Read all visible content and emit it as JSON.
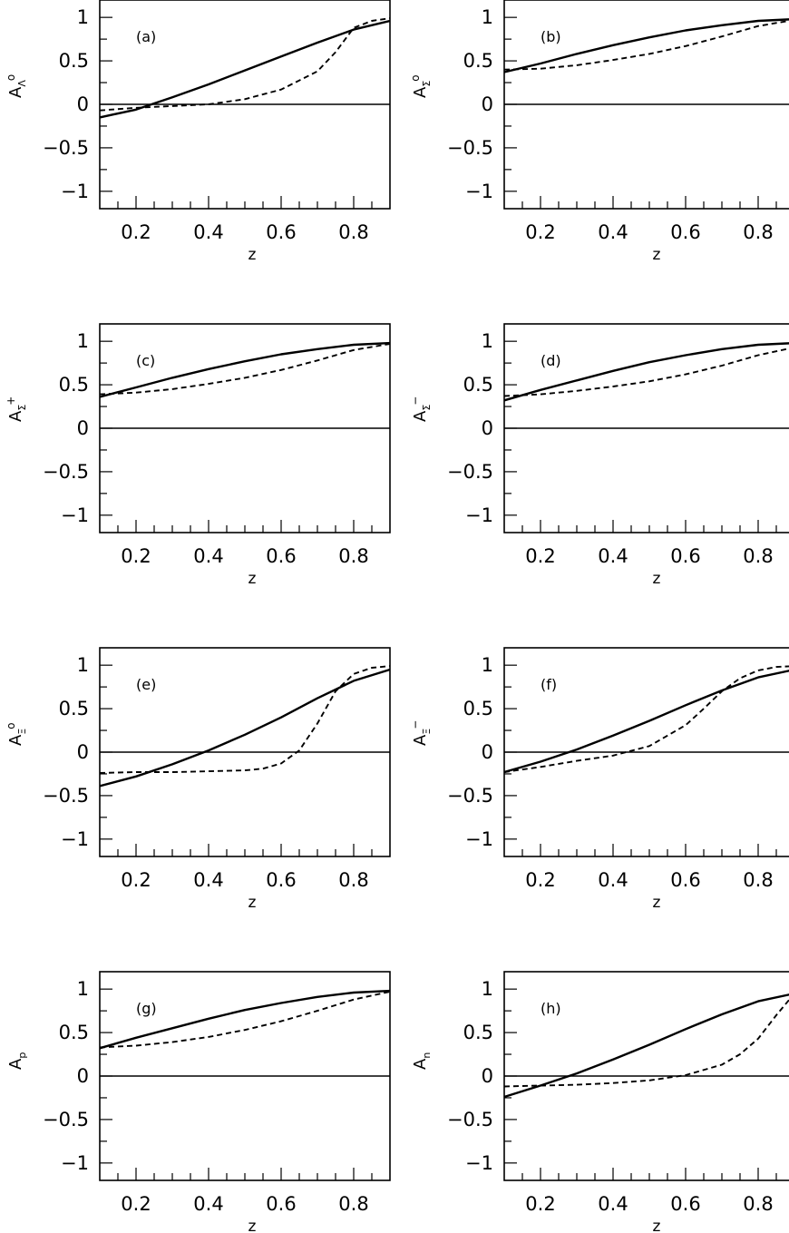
{
  "chart_data": [
    {
      "type": "line",
      "panel_label": "(a)",
      "ylabel": {
        "base": "A",
        "sub": "Λ",
        "sup": "o"
      },
      "xlabel": "z",
      "xlim": [
        0.1,
        0.9
      ],
      "ylim": [
        -1.2,
        1.2
      ],
      "x_ticks": [
        0.2,
        0.4,
        0.6,
        0.8
      ],
      "y_ticks": [
        1,
        0.5,
        0,
        -0.5,
        -1
      ],
      "reference_line_y": 0,
      "series": [
        {
          "style": "solid",
          "x": [
            0.1,
            0.2,
            0.3,
            0.4,
            0.5,
            0.6,
            0.7,
            0.8,
            0.9
          ],
          "y": [
            -0.15,
            -0.06,
            0.08,
            0.23,
            0.39,
            0.55,
            0.71,
            0.86,
            0.96
          ]
        },
        {
          "style": "dashed",
          "x": [
            0.1,
            0.2,
            0.3,
            0.4,
            0.5,
            0.6,
            0.7,
            0.75,
            0.8,
            0.85,
            0.9
          ],
          "y": [
            -0.07,
            -0.04,
            -0.02,
            0.0,
            0.06,
            0.17,
            0.38,
            0.6,
            0.88,
            0.96,
            0.99
          ]
        }
      ]
    },
    {
      "type": "line",
      "panel_label": "(b)",
      "ylabel": {
        "base": "A",
        "sub": "Σ",
        "sup": "o"
      },
      "xlabel": "z",
      "xlim": [
        0.1,
        0.9
      ],
      "ylim": [
        -1.2,
        1.2
      ],
      "x_ticks": [
        0.2,
        0.4,
        0.6,
        0.8
      ],
      "y_ticks": [
        1,
        0.5,
        0,
        -0.5,
        -1
      ],
      "reference_line_y": 0,
      "series": [
        {
          "style": "solid",
          "x": [
            0.1,
            0.2,
            0.3,
            0.4,
            0.5,
            0.6,
            0.7,
            0.8,
            0.9
          ],
          "y": [
            0.37,
            0.47,
            0.58,
            0.68,
            0.77,
            0.85,
            0.91,
            0.96,
            0.98
          ]
        },
        {
          "style": "dashed",
          "x": [
            0.1,
            0.2,
            0.3,
            0.4,
            0.5,
            0.6,
            0.7,
            0.8,
            0.9
          ],
          "y": [
            0.4,
            0.41,
            0.45,
            0.51,
            0.58,
            0.67,
            0.78,
            0.9,
            0.97
          ]
        }
      ]
    },
    {
      "type": "line",
      "panel_label": "(c)",
      "ylabel": {
        "base": "A",
        "sub": "Σ",
        "sup": "+"
      },
      "xlabel": "z",
      "xlim": [
        0.1,
        0.9
      ],
      "ylim": [
        -1.2,
        1.2
      ],
      "x_ticks": [
        0.2,
        0.4,
        0.6,
        0.8
      ],
      "y_ticks": [
        1,
        0.5,
        0,
        -0.5,
        -1
      ],
      "reference_line_y": 0,
      "series": [
        {
          "style": "solid",
          "x": [
            0.1,
            0.2,
            0.3,
            0.4,
            0.5,
            0.6,
            0.7,
            0.8,
            0.9
          ],
          "y": [
            0.36,
            0.47,
            0.58,
            0.68,
            0.77,
            0.85,
            0.91,
            0.96,
            0.98
          ]
        },
        {
          "style": "dashed",
          "x": [
            0.1,
            0.2,
            0.3,
            0.4,
            0.5,
            0.6,
            0.7,
            0.8,
            0.9
          ],
          "y": [
            0.39,
            0.41,
            0.45,
            0.51,
            0.58,
            0.67,
            0.78,
            0.9,
            0.97
          ]
        }
      ]
    },
    {
      "type": "line",
      "panel_label": "(d)",
      "ylabel": {
        "base": "A",
        "sub": "Σ",
        "sup": "−"
      },
      "xlabel": "z",
      "xlim": [
        0.1,
        0.9
      ],
      "ylim": [
        -1.2,
        1.2
      ],
      "x_ticks": [
        0.2,
        0.4,
        0.6,
        0.8
      ],
      "y_ticks": [
        1,
        0.5,
        0,
        -0.5,
        -1
      ],
      "reference_line_y": 0,
      "series": [
        {
          "style": "solid",
          "x": [
            0.1,
            0.2,
            0.3,
            0.4,
            0.5,
            0.6,
            0.7,
            0.8,
            0.9
          ],
          "y": [
            0.32,
            0.44,
            0.55,
            0.66,
            0.76,
            0.84,
            0.91,
            0.96,
            0.98
          ]
        },
        {
          "style": "dashed",
          "x": [
            0.1,
            0.2,
            0.3,
            0.4,
            0.5,
            0.6,
            0.7,
            0.8,
            0.9
          ],
          "y": [
            0.37,
            0.39,
            0.43,
            0.48,
            0.54,
            0.62,
            0.72,
            0.84,
            0.93
          ]
        }
      ]
    },
    {
      "type": "line",
      "panel_label": "(e)",
      "ylabel": {
        "base": "A",
        "sub": "Ξ",
        "sup": "o"
      },
      "xlabel": "z",
      "xlim": [
        0.1,
        0.9
      ],
      "ylim": [
        -1.2,
        1.2
      ],
      "x_ticks": [
        0.2,
        0.4,
        0.6,
        0.8
      ],
      "y_ticks": [
        1,
        0.5,
        0,
        -0.5,
        -1
      ],
      "reference_line_y": 0,
      "series": [
        {
          "style": "solid",
          "x": [
            0.1,
            0.2,
            0.3,
            0.4,
            0.5,
            0.6,
            0.7,
            0.8,
            0.9
          ],
          "y": [
            -0.39,
            -0.28,
            -0.14,
            0.02,
            0.2,
            0.4,
            0.62,
            0.82,
            0.95
          ]
        },
        {
          "style": "dashed",
          "x": [
            0.1,
            0.2,
            0.3,
            0.4,
            0.5,
            0.55,
            0.6,
            0.65,
            0.7,
            0.75,
            0.8,
            0.85,
            0.9
          ],
          "y": [
            -0.24,
            -0.23,
            -0.23,
            -0.22,
            -0.21,
            -0.19,
            -0.13,
            0.02,
            0.33,
            0.7,
            0.9,
            0.97,
            0.99
          ]
        }
      ]
    },
    {
      "type": "line",
      "panel_label": "(f)",
      "ylabel": {
        "base": "A",
        "sub": "Ξ",
        "sup": "−"
      },
      "xlabel": "z",
      "xlim": [
        0.1,
        0.9
      ],
      "ylim": [
        -1.2,
        1.2
      ],
      "x_ticks": [
        0.2,
        0.4,
        0.6,
        0.8
      ],
      "y_ticks": [
        1,
        0.5,
        0,
        -0.5,
        -1
      ],
      "reference_line_y": 0,
      "series": [
        {
          "style": "solid",
          "x": [
            0.1,
            0.2,
            0.3,
            0.4,
            0.5,
            0.6,
            0.7,
            0.8,
            0.9
          ],
          "y": [
            -0.23,
            -0.11,
            0.03,
            0.19,
            0.36,
            0.54,
            0.71,
            0.86,
            0.95
          ]
        },
        {
          "style": "dashed",
          "x": [
            0.1,
            0.2,
            0.3,
            0.4,
            0.5,
            0.6,
            0.65,
            0.7,
            0.75,
            0.8,
            0.85,
            0.9
          ],
          "y": [
            -0.23,
            -0.17,
            -0.1,
            -0.04,
            0.07,
            0.31,
            0.5,
            0.7,
            0.85,
            0.94,
            0.98,
            0.99
          ]
        }
      ]
    },
    {
      "type": "line",
      "panel_label": "(g)",
      "ylabel": {
        "base": "A",
        "sub": "p",
        "sup": ""
      },
      "xlabel": "z",
      "xlim": [
        0.1,
        0.9
      ],
      "ylim": [
        -1.2,
        1.2
      ],
      "x_ticks": [
        0.2,
        0.4,
        0.6,
        0.8
      ],
      "y_ticks": [
        1,
        0.5,
        0,
        -0.5,
        -1
      ],
      "reference_line_y": 0,
      "series": [
        {
          "style": "solid",
          "x": [
            0.1,
            0.2,
            0.3,
            0.4,
            0.5,
            0.6,
            0.7,
            0.8,
            0.9
          ],
          "y": [
            0.32,
            0.44,
            0.55,
            0.66,
            0.76,
            0.84,
            0.91,
            0.96,
            0.98
          ]
        },
        {
          "style": "dashed",
          "x": [
            0.1,
            0.2,
            0.3,
            0.4,
            0.5,
            0.6,
            0.7,
            0.8,
            0.9
          ],
          "y": [
            0.33,
            0.35,
            0.39,
            0.45,
            0.53,
            0.63,
            0.75,
            0.88,
            0.97
          ]
        }
      ]
    },
    {
      "type": "line",
      "panel_label": "(h)",
      "ylabel": {
        "base": "A",
        "sub": "n",
        "sup": ""
      },
      "xlabel": "z",
      "xlim": [
        0.1,
        0.9
      ],
      "ylim": [
        -1.2,
        1.2
      ],
      "x_ticks": [
        0.2,
        0.4,
        0.6,
        0.8
      ],
      "y_ticks": [
        1,
        0.5,
        0,
        -0.5,
        -1
      ],
      "reference_line_y": 0,
      "series": [
        {
          "style": "solid",
          "x": [
            0.1,
            0.2,
            0.3,
            0.4,
            0.5,
            0.6,
            0.7,
            0.8,
            0.9
          ],
          "y": [
            -0.24,
            -0.11,
            0.03,
            0.19,
            0.36,
            0.54,
            0.71,
            0.86,
            0.95
          ]
        },
        {
          "style": "dashed",
          "x": [
            0.1,
            0.2,
            0.3,
            0.4,
            0.5,
            0.6,
            0.7,
            0.75,
            0.8,
            0.85,
            0.9
          ],
          "y": [
            -0.12,
            -0.11,
            -0.1,
            -0.08,
            -0.05,
            0.01,
            0.13,
            0.25,
            0.43,
            0.7,
            0.95
          ]
        }
      ]
    }
  ]
}
